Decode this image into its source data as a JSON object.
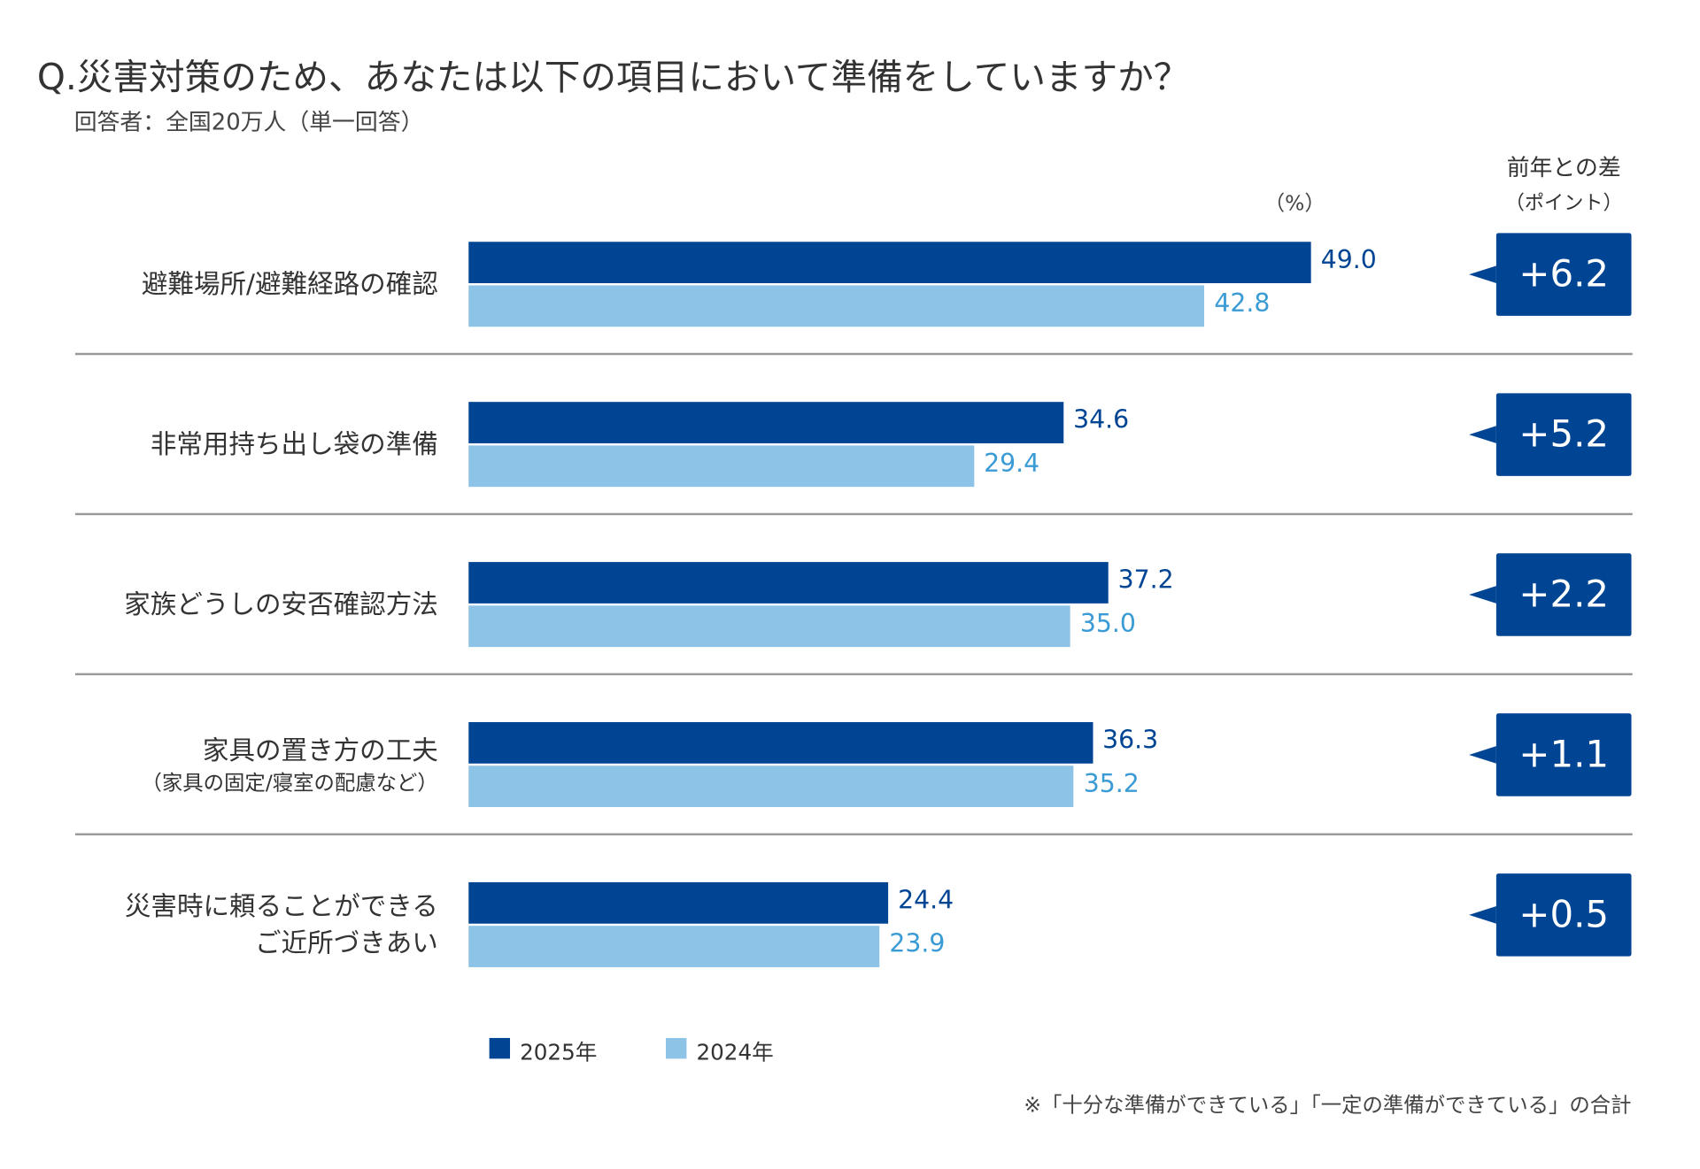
{
  "title": "Q.災害対策のため、あなたは以下の項目において準備をしていますか？",
  "subtitle": "回答者：全国20万人（単一回答）",
  "unit_label": "（%）",
  "diff_header": {
    "line1": "前年との差",
    "line2": "（ポイント）"
  },
  "colors": {
    "series_2025": "#004494",
    "series_2024": "#8cc3e6",
    "label_2024": "#3a9bd5"
  },
  "chart_data": {
    "type": "bar",
    "orientation": "horizontal",
    "title": "Q.災害対策のため、あなたは以下の項目において準備をしていますか？",
    "xlabel": "（%）",
    "xlim": [
      0,
      50
    ],
    "grid": false,
    "legend_position": "bottom",
    "categories": [
      {
        "label": "避難場所/避難経路の確認",
        "sub": ""
      },
      {
        "label": "非常用持ち出し袋の準備",
        "sub": ""
      },
      {
        "label": "家族どうしの安否確認方法",
        "sub": ""
      },
      {
        "label": "家具の置き方の工夫",
        "sub": "（家具の固定/寝室の配慮など）"
      },
      {
        "label": "災害時に頼ることができる\nご近所づきあい",
        "sub": ""
      }
    ],
    "series": [
      {
        "name": "2025年",
        "values": [
          49.0,
          34.6,
          37.2,
          36.3,
          24.4
        ],
        "labels": [
          "49.0",
          "34.6",
          "37.2",
          "36.3",
          "24.4"
        ]
      },
      {
        "name": "2024年",
        "values": [
          42.8,
          29.4,
          35.0,
          35.2,
          23.9
        ],
        "labels": [
          "42.8",
          "29.4",
          "35.0",
          "35.2",
          "23.9"
        ]
      }
    ],
    "differences": [
      "+6.2",
      "+5.2",
      "+2.2",
      "+1.1",
      "+0.5"
    ]
  },
  "footnote": "※「十分な準備ができている」「一定の準備ができている」の合計"
}
